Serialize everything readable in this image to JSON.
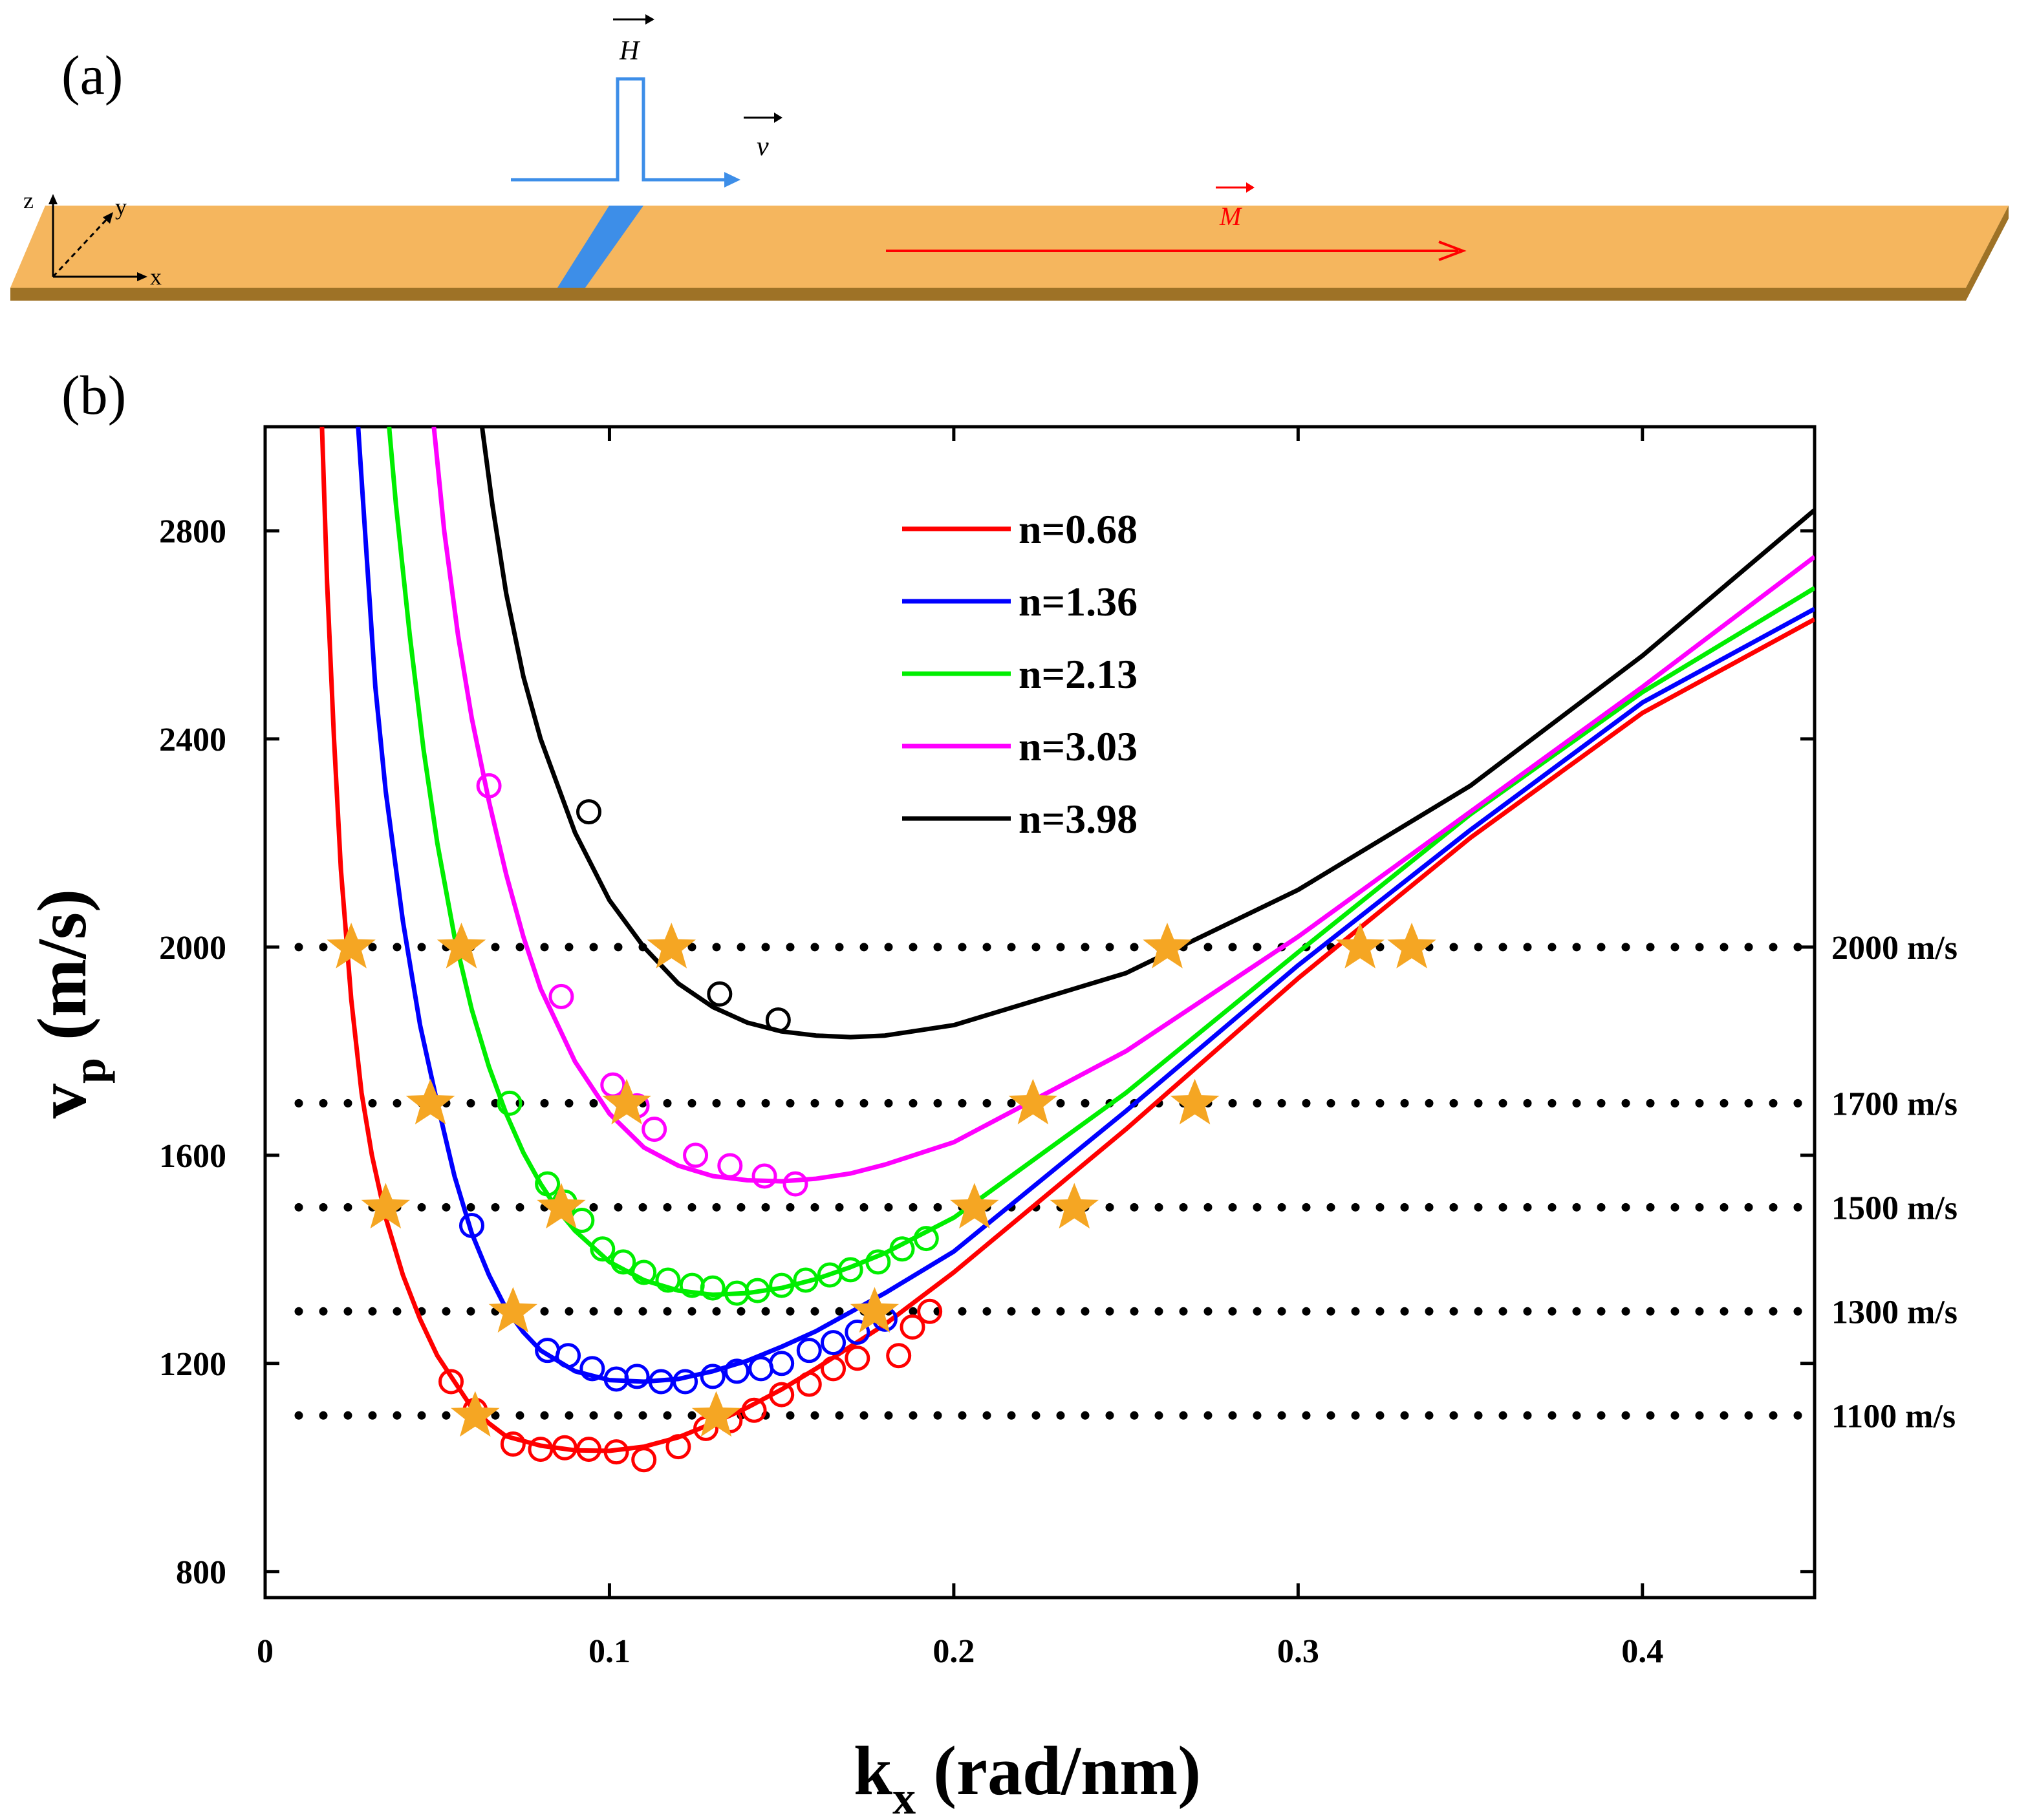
{
  "panel_a": {
    "label": "(a)",
    "axis_z": "z",
    "axis_y": "y",
    "axis_x": "x",
    "vec_H": "H",
    "vec_v": "v",
    "vec_M": "M",
    "colors": {
      "strip": "#F5B65E",
      "strip_edge": "#9E7226",
      "pulse": "#3D8EE8",
      "magnet": "#FF0000"
    }
  },
  "panel_b": {
    "label": "(b)"
  },
  "chart_data": {
    "type": "line",
    "xlabel_main": "k",
    "xlabel_sub": "x",
    "xlabel_rest": " (rad/nm)",
    "ylabel_main": "v",
    "ylabel_sub": "p",
    "ylabel_rest": " (m/s)",
    "xlim": [
      0,
      0.45
    ],
    "ylim": [
      750,
      3000
    ],
    "x_ticks": [
      0,
      0.1,
      0.2,
      0.3,
      0.4
    ],
    "x_tick_labels": [
      "0",
      "0.1",
      "0.2",
      "0.3",
      "0.4"
    ],
    "y_ticks": [
      800,
      1200,
      1600,
      2000,
      2400,
      2800
    ],
    "y_tick_labels": [
      "800",
      "1200",
      "1600",
      "2000",
      "2400",
      "2800"
    ],
    "grid": false,
    "legend_position": "top-center",
    "series": [
      {
        "name": "n=0.68",
        "color": "#FF0000",
        "curve": [
          [
            0.0165,
            3000
          ],
          [
            0.018,
            2700
          ],
          [
            0.02,
            2400
          ],
          [
            0.022,
            2150
          ],
          [
            0.025,
            1900
          ],
          [
            0.028,
            1720
          ],
          [
            0.031,
            1600
          ],
          [
            0.035,
            1480
          ],
          [
            0.04,
            1370
          ],
          [
            0.045,
            1285
          ],
          [
            0.05,
            1215
          ],
          [
            0.055,
            1165
          ],
          [
            0.06,
            1115
          ],
          [
            0.065,
            1085
          ],
          [
            0.07,
            1060
          ],
          [
            0.08,
            1042
          ],
          [
            0.09,
            1033
          ],
          [
            0.1,
            1032
          ],
          [
            0.11,
            1040
          ],
          [
            0.12,
            1058
          ],
          [
            0.13,
            1085
          ],
          [
            0.14,
            1115
          ],
          [
            0.15,
            1150
          ],
          [
            0.16,
            1190
          ],
          [
            0.18,
            1275
          ],
          [
            0.2,
            1375
          ],
          [
            0.25,
            1650
          ],
          [
            0.3,
            1940
          ],
          [
            0.35,
            2210
          ],
          [
            0.4,
            2450
          ],
          [
            0.45,
            2630
          ]
        ],
        "markers": [
          [
            0.054,
            1165
          ],
          [
            0.061,
            1110
          ],
          [
            0.072,
            1045
          ],
          [
            0.08,
            1035
          ],
          [
            0.087,
            1038
          ],
          [
            0.094,
            1035
          ],
          [
            0.102,
            1030
          ],
          [
            0.11,
            1015
          ],
          [
            0.12,
            1040
          ],
          [
            0.128,
            1075
          ],
          [
            0.135,
            1090
          ],
          [
            0.142,
            1110
          ],
          [
            0.15,
            1140
          ],
          [
            0.158,
            1160
          ],
          [
            0.165,
            1190
          ],
          [
            0.172,
            1210
          ],
          [
            0.184,
            1215
          ],
          [
            0.188,
            1270
          ],
          [
            0.193,
            1300
          ]
        ],
        "stars": [
          [
            0.025,
            2000
          ],
          [
            0.035,
            1500
          ],
          [
            0.061,
            1100
          ],
          [
            0.131,
            1100
          ],
          [
            0.235,
            1500
          ],
          [
            0.27,
            1700
          ],
          [
            0.333,
            2000
          ]
        ]
      },
      {
        "name": "n=1.36",
        "color": "#0000FF",
        "curve": [
          [
            0.027,
            3000
          ],
          [
            0.029,
            2800
          ],
          [
            0.032,
            2500
          ],
          [
            0.035,
            2300
          ],
          [
            0.04,
            2050
          ],
          [
            0.045,
            1850
          ],
          [
            0.05,
            1700
          ],
          [
            0.055,
            1560
          ],
          [
            0.06,
            1450
          ],
          [
            0.065,
            1370
          ],
          [
            0.07,
            1305
          ],
          [
            0.075,
            1260
          ],
          [
            0.08,
            1225
          ],
          [
            0.09,
            1185
          ],
          [
            0.1,
            1168
          ],
          [
            0.11,
            1165
          ],
          [
            0.12,
            1170
          ],
          [
            0.13,
            1185
          ],
          [
            0.14,
            1205
          ],
          [
            0.15,
            1232
          ],
          [
            0.16,
            1262
          ],
          [
            0.18,
            1335
          ],
          [
            0.2,
            1415
          ],
          [
            0.25,
            1685
          ],
          [
            0.3,
            1965
          ],
          [
            0.35,
            2225
          ],
          [
            0.4,
            2470
          ],
          [
            0.45,
            2650
          ]
        ],
        "markers": [
          [
            0.06,
            1465
          ],
          [
            0.082,
            1225
          ],
          [
            0.088,
            1215
          ],
          [
            0.095,
            1190
          ],
          [
            0.102,
            1170
          ],
          [
            0.108,
            1175
          ],
          [
            0.115,
            1165
          ],
          [
            0.122,
            1165
          ],
          [
            0.13,
            1175
          ],
          [
            0.137,
            1185
          ],
          [
            0.144,
            1190
          ],
          [
            0.15,
            1200
          ],
          [
            0.158,
            1225
          ],
          [
            0.165,
            1240
          ],
          [
            0.172,
            1260
          ],
          [
            0.18,
            1285
          ]
        ],
        "stars": [
          [
            0.048,
            1700
          ],
          [
            0.072,
            1300
          ],
          [
            0.177,
            1300
          ]
        ]
      },
      {
        "name": "n=2.13",
        "color": "#00EE00",
        "curve": [
          [
            0.036,
            3000
          ],
          [
            0.038,
            2850
          ],
          [
            0.042,
            2600
          ],
          [
            0.046,
            2380
          ],
          [
            0.05,
            2200
          ],
          [
            0.055,
            2020
          ],
          [
            0.06,
            1880
          ],
          [
            0.065,
            1770
          ],
          [
            0.07,
            1680
          ],
          [
            0.075,
            1605
          ],
          [
            0.08,
            1545
          ],
          [
            0.085,
            1495
          ],
          [
            0.09,
            1455
          ],
          [
            0.1,
            1395
          ],
          [
            0.11,
            1360
          ],
          [
            0.12,
            1340
          ],
          [
            0.13,
            1332
          ],
          [
            0.14,
            1335
          ],
          [
            0.15,
            1345
          ],
          [
            0.16,
            1362
          ],
          [
            0.17,
            1385
          ],
          [
            0.18,
            1412
          ],
          [
            0.2,
            1480
          ],
          [
            0.25,
            1720
          ],
          [
            0.3,
            1990
          ],
          [
            0.35,
            2255
          ],
          [
            0.4,
            2490
          ],
          [
            0.45,
            2690
          ]
        ],
        "markers": [
          [
            0.071,
            1700
          ],
          [
            0.082,
            1545
          ],
          [
            0.087,
            1510
          ],
          [
            0.092,
            1475
          ],
          [
            0.098,
            1420
          ],
          [
            0.104,
            1395
          ],
          [
            0.11,
            1375
          ],
          [
            0.117,
            1360
          ],
          [
            0.124,
            1350
          ],
          [
            0.13,
            1345
          ],
          [
            0.137,
            1335
          ],
          [
            0.143,
            1340
          ],
          [
            0.15,
            1350
          ],
          [
            0.157,
            1360
          ],
          [
            0.164,
            1370
          ],
          [
            0.17,
            1380
          ],
          [
            0.178,
            1395
          ],
          [
            0.185,
            1420
          ],
          [
            0.192,
            1440
          ]
        ],
        "stars": [
          [
            0.057,
            2000
          ],
          [
            0.086,
            1500
          ],
          [
            0.206,
            1500
          ],
          [
            0.318,
            2000
          ]
        ]
      },
      {
        "name": "n=3.03",
        "color": "#FF00FF",
        "curve": [
          [
            0.049,
            3000
          ],
          [
            0.052,
            2800
          ],
          [
            0.056,
            2600
          ],
          [
            0.06,
            2440
          ],
          [
            0.065,
            2280
          ],
          [
            0.07,
            2140
          ],
          [
            0.075,
            2020
          ],
          [
            0.08,
            1920
          ],
          [
            0.09,
            1780
          ],
          [
            0.1,
            1680
          ],
          [
            0.11,
            1615
          ],
          [
            0.12,
            1580
          ],
          [
            0.13,
            1560
          ],
          [
            0.14,
            1552
          ],
          [
            0.15,
            1550
          ],
          [
            0.16,
            1555
          ],
          [
            0.17,
            1565
          ],
          [
            0.18,
            1582
          ],
          [
            0.2,
            1625
          ],
          [
            0.25,
            1800
          ],
          [
            0.3,
            2020
          ],
          [
            0.35,
            2260
          ],
          [
            0.4,
            2500
          ],
          [
            0.45,
            2750
          ]
        ],
        "markers": [
          [
            0.065,
            2310
          ],
          [
            0.086,
            1905
          ],
          [
            0.101,
            1735
          ],
          [
            0.108,
            1695
          ],
          [
            0.113,
            1650
          ],
          [
            0.125,
            1600
          ],
          [
            0.135,
            1580
          ],
          [
            0.145,
            1560
          ],
          [
            0.154,
            1545
          ]
        ],
        "stars": [
          [
            0.105,
            1700
          ],
          [
            0.223,
            1700
          ]
        ]
      },
      {
        "name": "n=3.98",
        "color": "#000000",
        "curve": [
          [
            0.063,
            3000
          ],
          [
            0.066,
            2850
          ],
          [
            0.07,
            2680
          ],
          [
            0.075,
            2520
          ],
          [
            0.08,
            2400
          ],
          [
            0.09,
            2220
          ],
          [
            0.1,
            2090
          ],
          [
            0.11,
            2000
          ],
          [
            0.12,
            1930
          ],
          [
            0.13,
            1885
          ],
          [
            0.14,
            1855
          ],
          [
            0.15,
            1838
          ],
          [
            0.16,
            1830
          ],
          [
            0.17,
            1827
          ],
          [
            0.18,
            1830
          ],
          [
            0.2,
            1850
          ],
          [
            0.25,
            1950
          ],
          [
            0.3,
            2110
          ],
          [
            0.35,
            2310
          ],
          [
            0.4,
            2560
          ],
          [
            0.45,
            2840
          ]
        ],
        "markers": [
          [
            0.094,
            2260
          ],
          [
            0.132,
            1910
          ],
          [
            0.149,
            1860
          ]
        ],
        "stars": [
          [
            0.118,
            2000
          ],
          [
            0.262,
            2000
          ]
        ]
      }
    ],
    "reference_lines": [
      {
        "y": 2000,
        "label": "2000 m/s"
      },
      {
        "y": 1700,
        "label": "1700 m/s"
      },
      {
        "y": 1500,
        "label": "1500 m/s"
      },
      {
        "y": 1300,
        "label": "1300 m/s"
      },
      {
        "y": 1100,
        "label": "1100 m/s"
      }
    ],
    "star_color": "#F5A623",
    "reference_line_color": "#000000"
  }
}
